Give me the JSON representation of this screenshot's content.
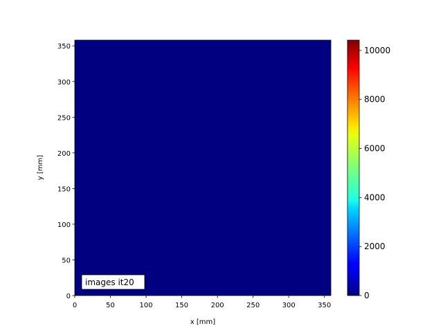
{
  "chart_data": {
    "type": "heatmap",
    "xlabel": "x [mm]",
    "ylabel": "y [mm]",
    "xlim": [
      0,
      359
    ],
    "ylim": [
      0,
      358
    ],
    "xticks": [
      0,
      50,
      100,
      150,
      200,
      250,
      300,
      350
    ],
    "yticks": [
      0,
      50,
      100,
      150,
      200,
      250,
      300,
      350
    ],
    "annotation": "images it20",
    "annotation_position": "bottom-left",
    "colormap": "jet",
    "image_uniform_value": 0,
    "image_color": "#000080",
    "colorbar": {
      "range": [
        0,
        10420
      ],
      "ticks": [
        0,
        2000,
        4000,
        6000,
        8000,
        10000
      ],
      "position": "right"
    },
    "grid": false
  }
}
